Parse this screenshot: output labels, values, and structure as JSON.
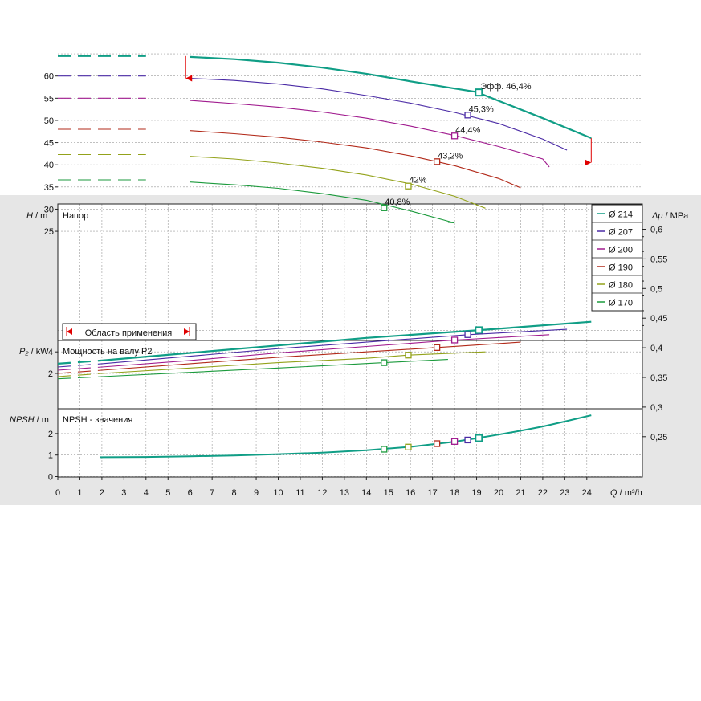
{
  "chart_data": [
    {
      "type": "line",
      "title": "Напор",
      "ylabel_var": "H",
      "ylabel_unit": "m",
      "y2label_var": "Δp",
      "y2label_unit": "MPa",
      "xlim": [
        0,
        24.8
      ],
      "ylim": [
        25,
        66
      ],
      "yticks": [
        "25",
        "30",
        "35",
        "40",
        "45",
        "50",
        "55",
        "60"
      ],
      "y2ticks": [
        "0,25",
        "0,3",
        "0,35",
        "0,4",
        "0,45",
        "0,5",
        "0,55",
        "0,6"
      ],
      "application_range_label": "Область применения",
      "application_range_q": [
        5.8,
        24.2
      ],
      "series": [
        {
          "name": "Ø 214",
          "color": "#109e86",
          "x": [
            0,
            2,
            4,
            6,
            8,
            10,
            12,
            14,
            16,
            18,
            19,
            20,
            22,
            24.2
          ],
          "y": [
            64.5,
            64.5,
            64.5,
            64.3,
            63.8,
            63,
            61.9,
            60.5,
            58.8,
            57.2,
            56.4,
            54.4,
            50.5,
            46
          ],
          "eff_x": 19.1,
          "eff_y": 56.3,
          "eff_label": "Эфф.   46,4%"
        },
        {
          "name": "Ø 207",
          "color": "#4a2aa5",
          "x": [
            0,
            2,
            4,
            6,
            8,
            10,
            12,
            14,
            16,
            18,
            20,
            22,
            23.1
          ],
          "y": [
            60,
            60,
            60,
            59.5,
            59,
            58.2,
            57.1,
            55.6,
            53.9,
            51.8,
            49.3,
            45.8,
            43.3
          ],
          "eff_x": 18.6,
          "eff_y": 51.2,
          "eff_label": "45,3%"
        },
        {
          "name": "Ø 200",
          "color": "#a01a8e",
          "x": [
            0,
            2,
            4,
            6,
            8,
            10,
            12,
            14,
            16,
            18,
            20,
            22,
            22.3
          ],
          "y": [
            55,
            55,
            55,
            54.5,
            53.8,
            53,
            51.9,
            50.5,
            48.7,
            46.6,
            44.1,
            41.3,
            39.5
          ],
          "eff_x": 18.0,
          "eff_y": 46.5,
          "eff_label": "44,4%"
        },
        {
          "name": "Ø 190",
          "color": "#b22a1a",
          "x": [
            0,
            2,
            4,
            6,
            8,
            10,
            12,
            14,
            16,
            17.2,
            18,
            20,
            21
          ],
          "y": [
            48,
            48,
            48,
            47.7,
            47,
            46.2,
            45.1,
            43.8,
            42,
            40.7,
            39.8,
            36.9,
            34.8
          ],
          "eff_x": 17.2,
          "eff_y": 40.7,
          "eff_label": "43,2%"
        },
        {
          "name": "Ø 180",
          "color": "#93a21a",
          "x": [
            0,
            2,
            4,
            6,
            8,
            10,
            12,
            14,
            16,
            18,
            19.4
          ],
          "y": [
            42.3,
            42.3,
            42.3,
            41.9,
            41.3,
            40.4,
            39.2,
            37.7,
            35.7,
            32.9,
            30.2
          ],
          "eff_x": 15.9,
          "eff_y": 35.2,
          "eff_label": "42%"
        },
        {
          "name": "Ø 170",
          "color": "#1b9a3c",
          "x": [
            0,
            2,
            4,
            6,
            8,
            10,
            12,
            14,
            16,
            18,
            17.7
          ],
          "y": [
            36.6,
            36.6,
            36.6,
            36.1,
            35.5,
            34.7,
            33.5,
            32,
            29.6,
            26.9,
            27
          ],
          "eff_x": 14.8,
          "eff_y": 30.3,
          "eff_label": "40,8%"
        }
      ]
    },
    {
      "type": "line",
      "title": "Мощность на валу P2",
      "ylabel_var": "P₂",
      "ylabel_unit": "kW",
      "xlim": [
        0,
        24.8
      ],
      "ylim": [
        0,
        6.2
      ],
      "yticks": [
        "2",
        "4"
      ],
      "series": [
        {
          "name": "Ø 214",
          "color": "#109e86",
          "x": [
            0,
            2,
            6,
            10,
            14,
            19,
            24.2
          ],
          "y": [
            2.9,
            3.2,
            3.9,
            4.6,
            5.3,
            6.0,
            6.8
          ],
          "eff_x": 19.1,
          "eff_y": 6.0
        },
        {
          "name": "Ø 207",
          "color": "#4a2aa5",
          "x": [
            0,
            2,
            6,
            10,
            14,
            18.6,
            23.1
          ],
          "y": [
            2.6,
            2.9,
            3.6,
            4.3,
            4.9,
            5.6,
            6.1
          ],
          "eff_x": 18.6,
          "eff_y": 5.6
        },
        {
          "name": "Ø 200",
          "color": "#a01a8e",
          "x": [
            0,
            2,
            6,
            10,
            14,
            18,
            22.3
          ],
          "y": [
            2.3,
            2.6,
            3.2,
            3.9,
            4.5,
            5.1,
            5.6
          ],
          "eff_x": 18.0,
          "eff_y": 5.1
        },
        {
          "name": "Ø 190",
          "color": "#b22a1a",
          "x": [
            0,
            2,
            6,
            10,
            14,
            17.2,
            21
          ],
          "y": [
            2.0,
            2.3,
            2.9,
            3.5,
            4.0,
            4.4,
            4.9
          ],
          "eff_x": 17.2,
          "eff_y": 4.4
        },
        {
          "name": "Ø 180",
          "color": "#93a21a",
          "x": [
            0,
            2,
            6,
            10,
            14,
            15.9,
            19.4
          ],
          "y": [
            1.7,
            2.0,
            2.5,
            3.0,
            3.4,
            3.7,
            4.0
          ],
          "eff_x": 15.9,
          "eff_y": 3.7
        },
        {
          "name": "Ø 170",
          "color": "#1b9a3c",
          "x": [
            0,
            2,
            6,
            10,
            14.8,
            17.7
          ],
          "y": [
            1.5,
            1.7,
            2.1,
            2.5,
            3.0,
            3.3
          ],
          "eff_x": 14.8,
          "eff_y": 3.0
        }
      ]
    },
    {
      "type": "line",
      "title": "NPSH - значения",
      "ylabel_var": "NPSH",
      "ylabel_unit": "m",
      "xlabel_var": "Q",
      "xlabel_unit": "m³/h",
      "xlim": [
        0,
        24.8
      ],
      "ylim": [
        0,
        3.0
      ],
      "yticks": [
        "0",
        "1",
        "2"
      ],
      "xticks": [
        "0",
        "1",
        "2",
        "3",
        "4",
        "5",
        "6",
        "7",
        "8",
        "9",
        "10",
        "11",
        "12",
        "13",
        "14",
        "15",
        "16",
        "17",
        "18",
        "19",
        "20",
        "21",
        "22",
        "23",
        "24"
      ],
      "series": [
        {
          "name": "NPSH",
          "color": "#109e86",
          "x": [
            1.9,
            4,
            6,
            8,
            10,
            12,
            14,
            16,
            18,
            19,
            20,
            21,
            22,
            23,
            24.2
          ],
          "y": [
            0.9,
            0.91,
            0.94,
            0.98,
            1.04,
            1.11,
            1.22,
            1.38,
            1.62,
            1.78,
            1.95,
            2.13,
            2.33,
            2.56,
            2.85
          ]
        }
      ],
      "markers": [
        {
          "x": 14.8,
          "y": 1.27,
          "color": "#1b9a3c"
        },
        {
          "x": 15.9,
          "y": 1.37,
          "color": "#93a21a"
        },
        {
          "x": 17.2,
          "y": 1.53,
          "color": "#b22a1a"
        },
        {
          "x": 18.0,
          "y": 1.63,
          "color": "#a01a8e"
        },
        {
          "x": 18.6,
          "y": 1.7,
          "color": "#4a2aa5"
        },
        {
          "x": 19.1,
          "y": 1.79,
          "color": "#109e86"
        }
      ]
    }
  ]
}
